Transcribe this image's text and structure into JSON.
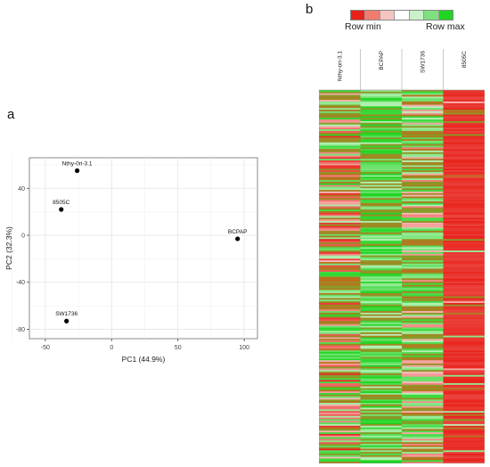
{
  "panel_a_label": "a",
  "panel_b_label": "b",
  "legend": {
    "min_label": "Row min",
    "max_label": "Row max",
    "colors": [
      "#e8221b",
      "#ef7c6e",
      "#f6c5bf",
      "#ffffff",
      "#c9f0c9",
      "#7ee07e",
      "#22d422"
    ]
  },
  "chart_data": [
    {
      "type": "scatter",
      "xlabel": "PC1 (44.9%)",
      "ylabel": "PC2 (32.3%)",
      "xlim": [
        -62,
        110
      ],
      "ylim": [
        -88,
        66
      ],
      "xticks": [
        -50,
        0,
        50,
        100
      ],
      "yticks": [
        -80,
        -40,
        0,
        40
      ],
      "grid": true,
      "points": [
        {
          "label": "Nthy-0ri-3.1",
          "x": -26,
          "y": 55
        },
        {
          "label": "8505C",
          "x": -38,
          "y": 22
        },
        {
          "label": "BCPAP",
          "x": 95,
          "y": -3
        },
        {
          "label": "SW1736",
          "x": -34,
          "y": -73
        }
      ]
    },
    {
      "type": "heatmap",
      "columns": [
        "Nthy-ori-3.1",
        "BCPAP",
        "SW1736",
        "8505C"
      ],
      "rows_visible": 228,
      "color_scale": [
        "Row min",
        "Row max"
      ]
    }
  ]
}
